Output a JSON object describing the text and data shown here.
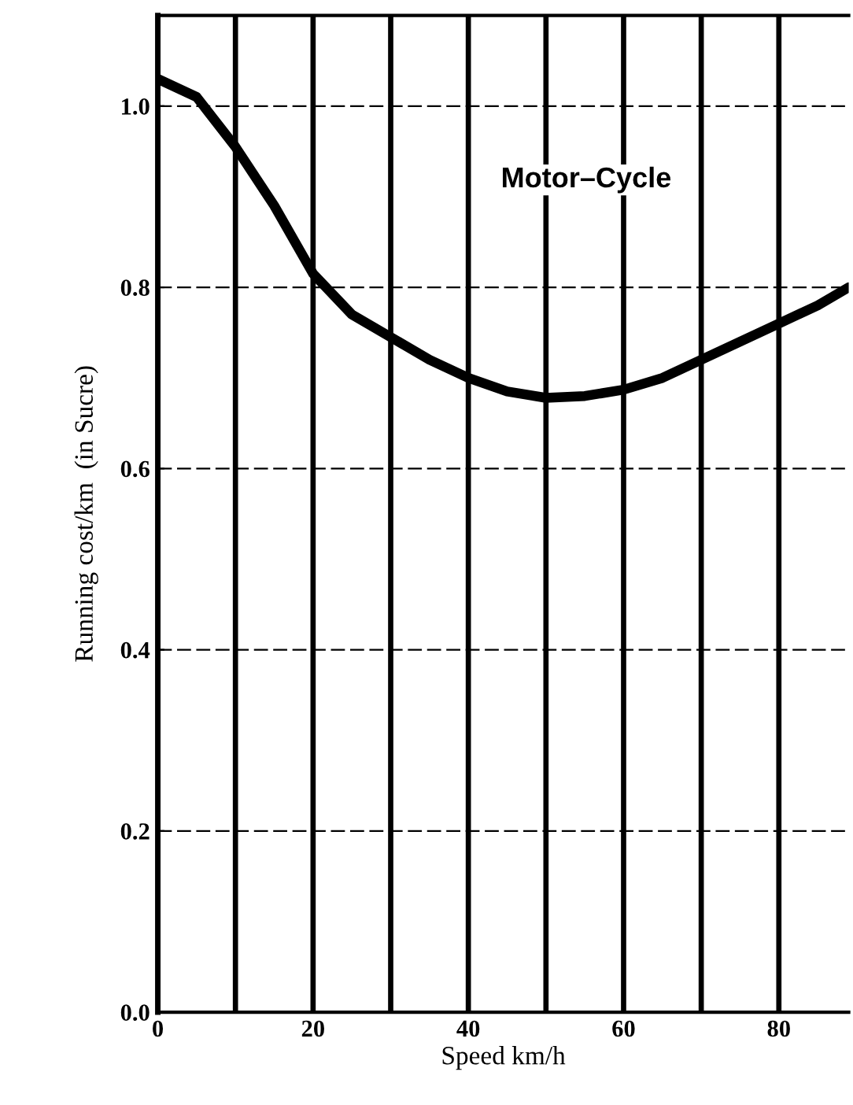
{
  "chart_data": {
    "type": "line",
    "xlabel": "Speed km/h",
    "ylabel": "Running cost/km  (in Sucre)",
    "x": [
      0,
      5,
      10,
      15,
      20,
      25,
      30,
      35,
      40,
      45,
      50,
      55,
      60,
      65,
      70,
      75,
      80,
      85,
      89
    ],
    "series": [
      {
        "name": "Motor–Cycle",
        "color": "#000000",
        "values": [
          1.03,
          1.01,
          0.955,
          0.89,
          0.815,
          0.77,
          0.745,
          0.72,
          0.7,
          0.685,
          0.678,
          0.68,
          0.687,
          0.7,
          0.72,
          0.74,
          0.76,
          0.78,
          0.8
        ]
      }
    ],
    "xlim": [
      0,
      89
    ],
    "xticks": [
      0,
      20,
      40,
      60,
      80
    ],
    "ylim": [
      0,
      1.1
    ],
    "yticks": [
      {
        "value": 0,
        "label": "0.0"
      },
      {
        "value": 0.2,
        "label": "0.2"
      },
      {
        "value": 0.4,
        "label": "0.4"
      },
      {
        "value": 0.6,
        "label": "0.6"
      },
      {
        "value": 0.8,
        "label": "0.8"
      },
      {
        "value": 1.0,
        "label": "1.0"
      }
    ],
    "grid": true,
    "marker": "none",
    "line_style": "solid",
    "legend": false
  }
}
